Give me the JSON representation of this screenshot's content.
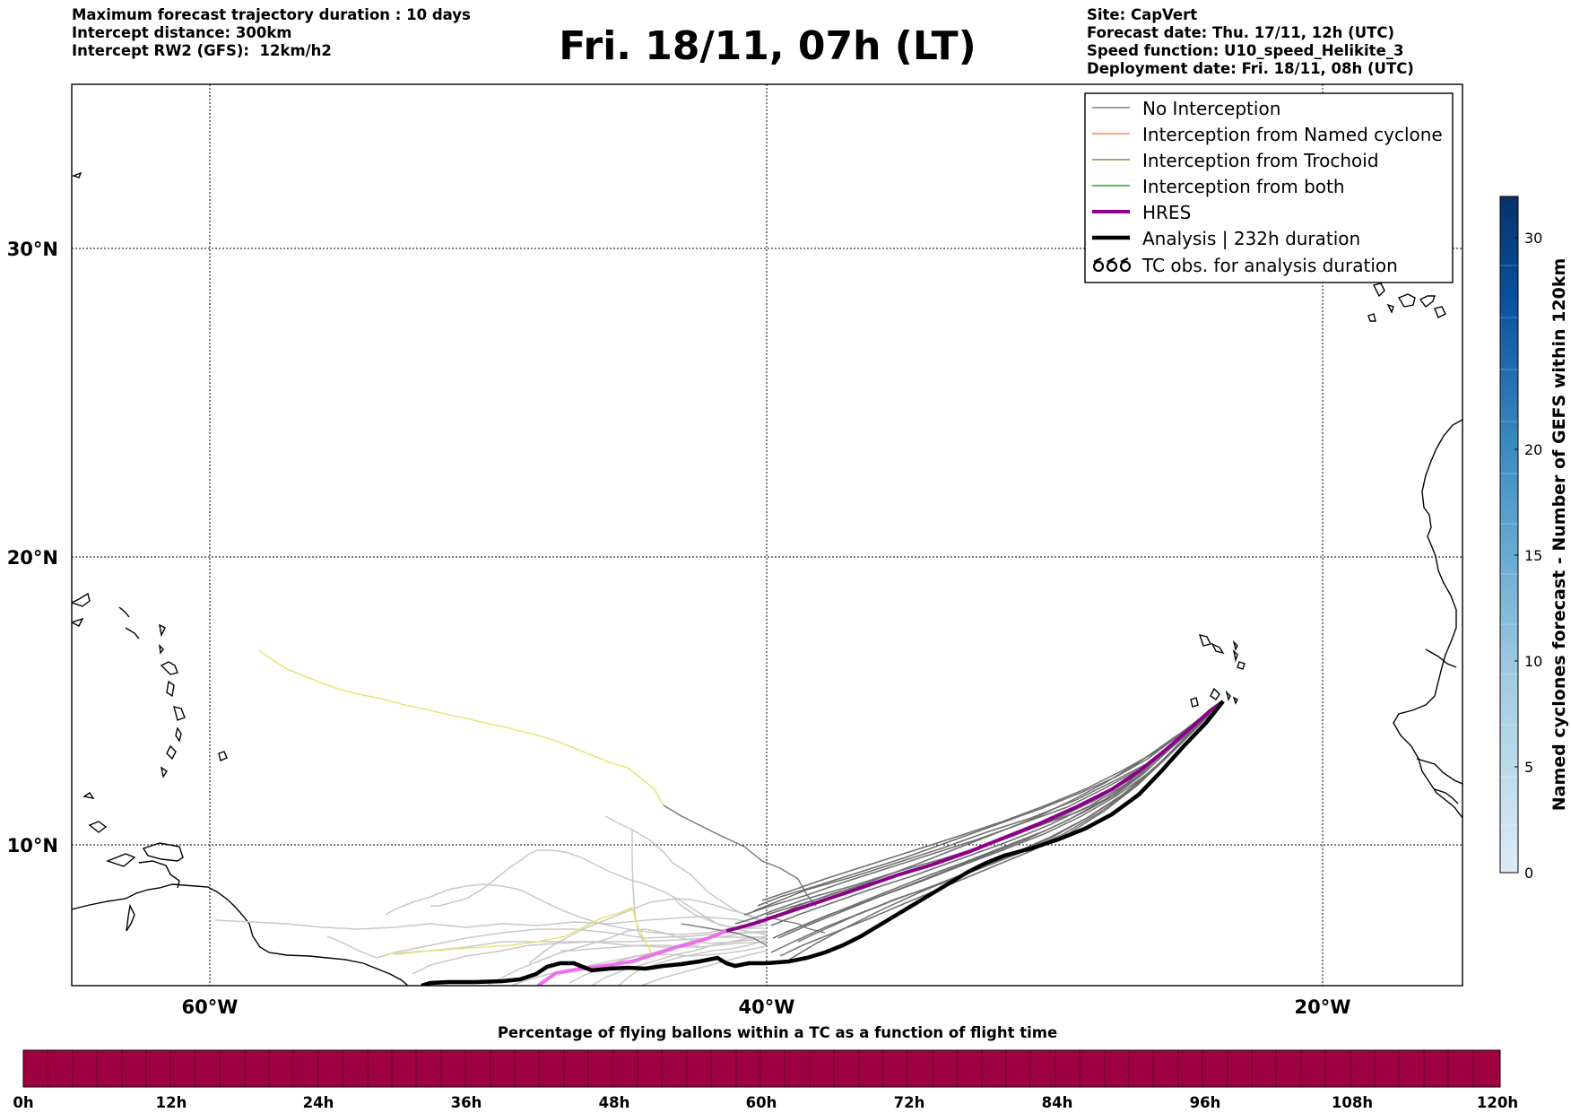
{
  "header_left": {
    "line1": "Maximum forecast trajectory duration : 10 days",
    "line2": "Intercept distance: 300km",
    "line3": "Intercept RW2 (GFS):  12km/h2"
  },
  "title": "Fri. 18/11, 07h (LT)",
  "header_right": {
    "line1": "Site: CapVert",
    "line2": "Forecast date: Thu. 17/11, 12h (UTC)",
    "line3": "Speed function: U10_speed_Helikite_3",
    "line4": "Deployment date: Fri. 18/11, 08h (UTC)"
  },
  "map": {
    "lon_range": [
      -65,
      -15
    ],
    "lat_range": [
      5.4,
      34.7
    ],
    "lat_ticks": [
      "30°N",
      "20°N",
      "10°N"
    ],
    "lon_ticks": [
      "60°W",
      "40°W",
      "20°W"
    ],
    "grid": true
  },
  "legend": {
    "placement": "top-right",
    "items": [
      {
        "label": "No Interception",
        "color": "#808080"
      },
      {
        "label": "Interception from Named cyclone",
        "color": "#ff7f50"
      },
      {
        "label": "Interception from Trochoid",
        "color": "#8b8b3a"
      },
      {
        "label": "Interception from both",
        "color": "#2ca02c"
      },
      {
        "label": "HRES",
        "color": "#8b008b"
      },
      {
        "label": "Analysis | 232h duration",
        "color": "#000000"
      },
      {
        "label": "TC obs. for analysis duration",
        "color": "#000000",
        "icon": "cyclone-symbols"
      }
    ]
  },
  "cyclone_colorbar": {
    "label": "Named cyclones forecast - Number of GEFS within 120km",
    "ticks": [
      "0",
      "5",
      "10",
      "15",
      "20",
      "30"
    ],
    "range": [
      0,
      32
    ],
    "colormap": "Blues"
  },
  "percentage_colorbar": {
    "title": "Percentage of flying ballons within a TC as a function of flight time",
    "ticks": [
      "0h",
      "12h",
      "24h",
      "36h",
      "48h",
      "60h",
      "72h",
      "84h",
      "96h",
      "108h",
      "120h"
    ],
    "fill_color": "#9e0142"
  }
}
